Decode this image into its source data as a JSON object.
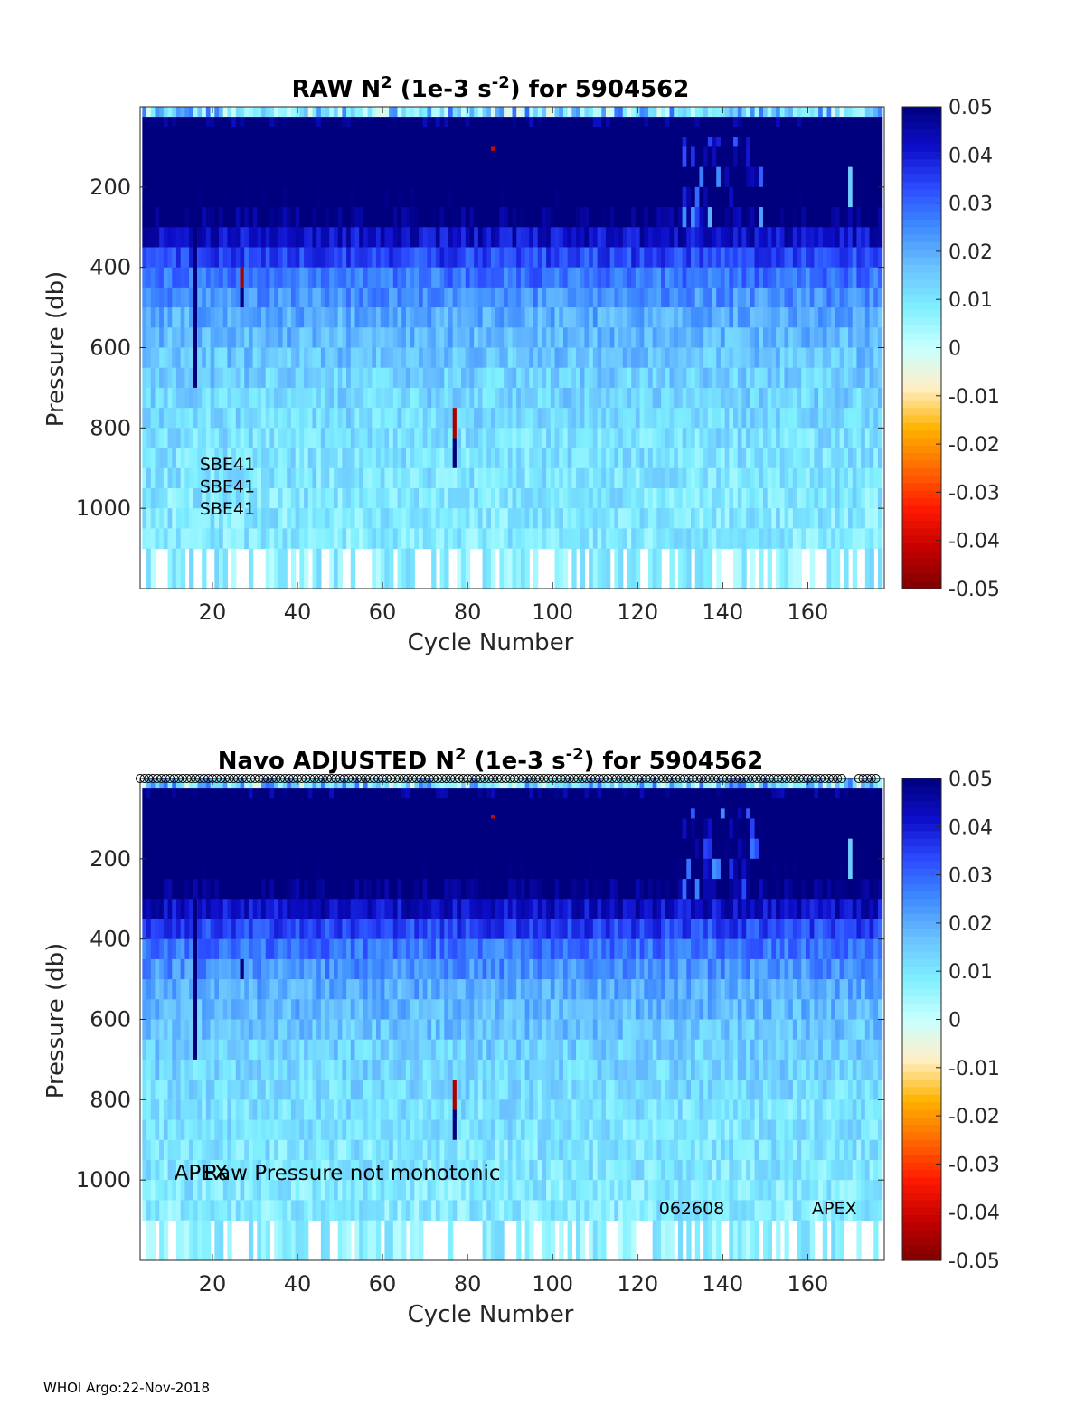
{
  "footer": "WHOI Argo:22-Nov-2018",
  "colormap": [
    "#7f0000",
    "#c40000",
    "#ff1a00",
    "#ff6a00",
    "#ffb400",
    "#fff0c8",
    "#c8ffff",
    "#7ff0ff",
    "#6bc2ff",
    "#3e8cff",
    "#2b4aff",
    "#0d0dc8",
    "#00007f"
  ],
  "chart_data": [
    {
      "type": "heatmap",
      "title": "RAW N² (1e-3 s⁻²) for 5904562",
      "title_parts": {
        "pre": "RAW N",
        "sup1": "2",
        "mid": " (1e-3 s",
        "sup2": "-2",
        "post": ") for 5904562"
      },
      "xlabel": "Cycle Number",
      "ylabel": "Pressure (db)",
      "xlim": [
        3,
        178
      ],
      "ylim": [
        1200,
        0
      ],
      "xticks": [
        20,
        40,
        60,
        80,
        100,
        120,
        140,
        160
      ],
      "yticks": [
        200,
        400,
        600,
        800,
        1000
      ],
      "colorbar": {
        "range": [
          -0.05,
          0.05
        ],
        "ticks": [
          "0.05",
          "0.04",
          "0.03",
          "0.02",
          "0.01",
          "0",
          "-0.01",
          "-0.02",
          "-0.03",
          "-0.04",
          "-0.05"
        ]
      },
      "annotations": [
        {
          "text": "SBE41",
          "x": 17,
          "y": 905
        },
        {
          "text": "SBE41",
          "x": 17,
          "y": 960
        },
        {
          "text": "SBE41",
          "x": 17,
          "y": 1015
        }
      ]
    },
    {
      "type": "heatmap",
      "title": "Navo  ADJUSTED N² (1e-3 s⁻²) for 5904562",
      "title_parts": {
        "pre": "Navo  ADJUSTED N",
        "sup1": "2",
        "mid": " (1e-3 s",
        "sup2": "-2",
        "post": ") for 5904562"
      },
      "xlabel": "Cycle Number",
      "ylabel": "Pressure (db)",
      "xlim": [
        3,
        178
      ],
      "ylim": [
        1200,
        0
      ],
      "xticks": [
        20,
        40,
        60,
        80,
        100,
        120,
        140,
        160
      ],
      "yticks": [
        200,
        400,
        600,
        800,
        1000
      ],
      "colorbar": {
        "range": [
          -0.05,
          0.05
        ],
        "ticks": [
          "0.05",
          "0.04",
          "0.03",
          "0.02",
          "0.01",
          "0",
          "-0.01",
          "-0.02",
          "-0.03",
          "-0.04",
          "-0.05"
        ]
      },
      "annotations": [
        {
          "text": "APEX",
          "x": 11,
          "y": 1000
        },
        {
          "text": "Raw Pressure not monotonic",
          "x": 18,
          "y": 1000
        },
        {
          "text": "062608",
          "x": 125,
          "y": 1085
        },
        {
          "text": "APEX",
          "x": 161,
          "y": 1085
        }
      ],
      "markers": {
        "symbol": "o",
        "y": 0,
        "from": 3,
        "to": 176
      }
    }
  ],
  "model": {
    "depth_bins": [
      0,
      25,
      50,
      75,
      100,
      150,
      200,
      250,
      300,
      350,
      400,
      450,
      500,
      550,
      600,
      650,
      700,
      750,
      800,
      850,
      900,
      950,
      1000,
      1050,
      1100,
      1200
    ],
    "depth_base": [
      0.012,
      0.06,
      0.06,
      0.06,
      0.06,
      0.058,
      0.055,
      0.05,
      0.042,
      0.034,
      0.028,
      0.024,
      0.02,
      0.018,
      0.016,
      0.014,
      0.013,
      0.012,
      0.011,
      0.0105,
      0.01,
      0.0095,
      0.009,
      0.0085,
      0.007
    ],
    "bad_cells_raw": [
      [
        16,
        400,
        450,
        -0.045
      ],
      [
        16,
        550,
        600,
        -0.045
      ],
      [
        27,
        400,
        450,
        -0.045
      ],
      [
        77,
        750,
        825,
        -0.045
      ],
      [
        86,
        100,
        110,
        -0.04
      ]
    ],
    "bad_cells_adj": [
      [
        16,
        400,
        450,
        -0.045
      ],
      [
        16,
        550,
        600,
        -0.045
      ],
      [
        77,
        750,
        825,
        -0.045
      ],
      [
        86,
        90,
        100,
        -0.04
      ]
    ],
    "dark_cells": [
      [
        16,
        300,
        700,
        0.06
      ],
      [
        27,
        450,
        500,
        0.06
      ],
      [
        77,
        825,
        900,
        0.06
      ]
    ]
  }
}
